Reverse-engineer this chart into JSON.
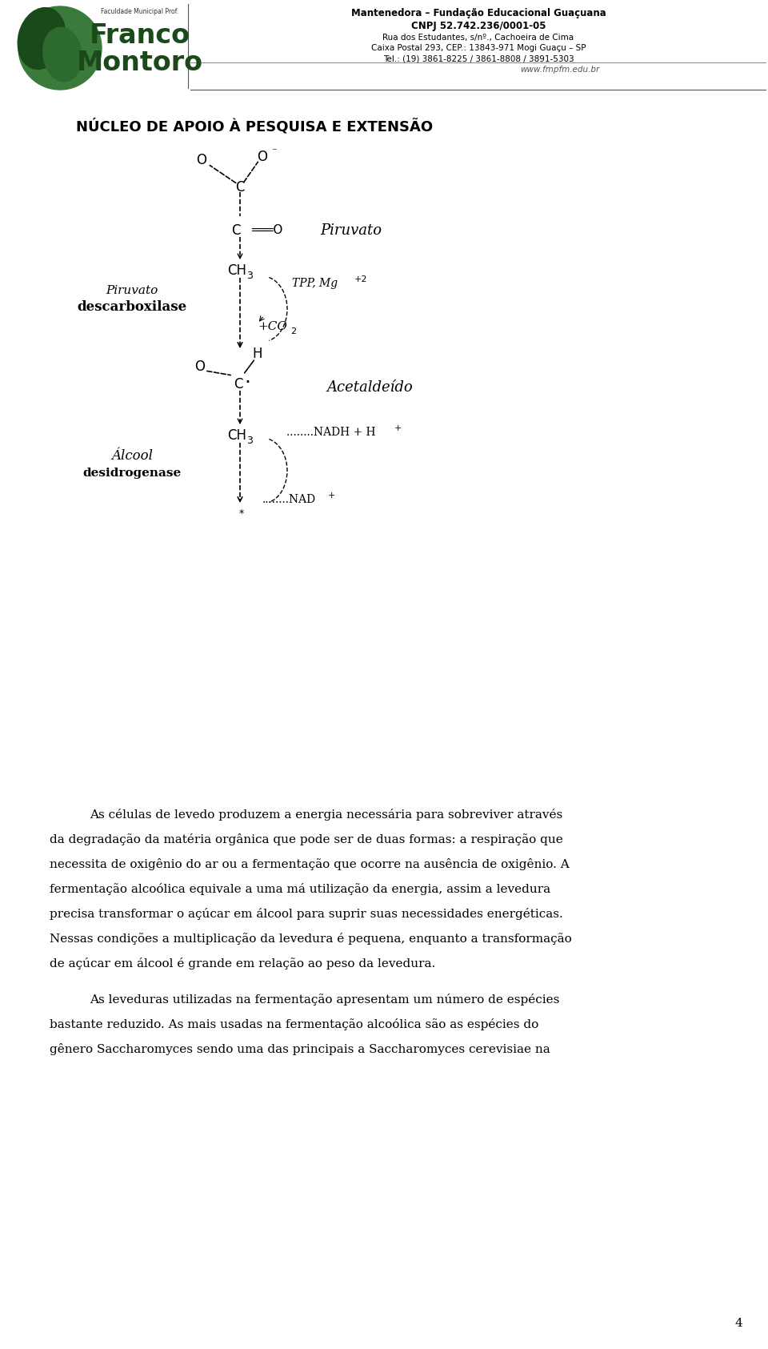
{
  "page_width": 9.6,
  "page_height": 16.85,
  "bg_color": "#ffffff",
  "header": {
    "logo_text_top": "Faculdade Municipal Prof.",
    "logo_text_franco": "Franco",
    "logo_text_montoro": "Montoro",
    "right_line1": "Mantenedora – Fundação Educacional Guaçuana",
    "right_line2": "CNPJ 52.742.236/0001-05",
    "right_line3": "Rua dos Estudantes, s/nº., Cachoeira de Cima",
    "right_line4": "Caixa Postal 293, CEP.: 13843-971 Mogi Guaçu – SP",
    "right_line5": "Tel.: (19) 3861-8225 / 3861-8808 / 3891-5303",
    "right_line6": "www.fmpfm.edu.br"
  },
  "section_title": "NÚCLEO DE APOIO À PESQUISA E EXTENSÃO",
  "lines_p1": [
    "As células de levedo produzem a energia necessária para sobreviver através",
    "da degradação da matéria orgânica que pode ser de duas formas: a respiração que",
    "necessita de oxigênio do ar ou a fermentação que ocorre na ausência de oxigênio. A",
    "fermentação alcoólica equivale a uma má utilização da energia, assim a levedura",
    "precisa transformar o açúcar em álcool para suprir suas necessidades energéticas.",
    "Nessas condições a multiplicação da levedura é pequena, enquanto a transformação",
    "de açúcar em álcool é grande em relação ao peso da levedura."
  ],
  "lines_p2": [
    "As leveduras utilizadas na fermentação apresentam um número de espécies",
    "bastante reduzido. As mais usadas na fermentação alcoólica são as espécies do",
    "gênero Saccharomyces sendo uma das principais a Saccharomyces cerevisiae na"
  ],
  "page_number": "4"
}
